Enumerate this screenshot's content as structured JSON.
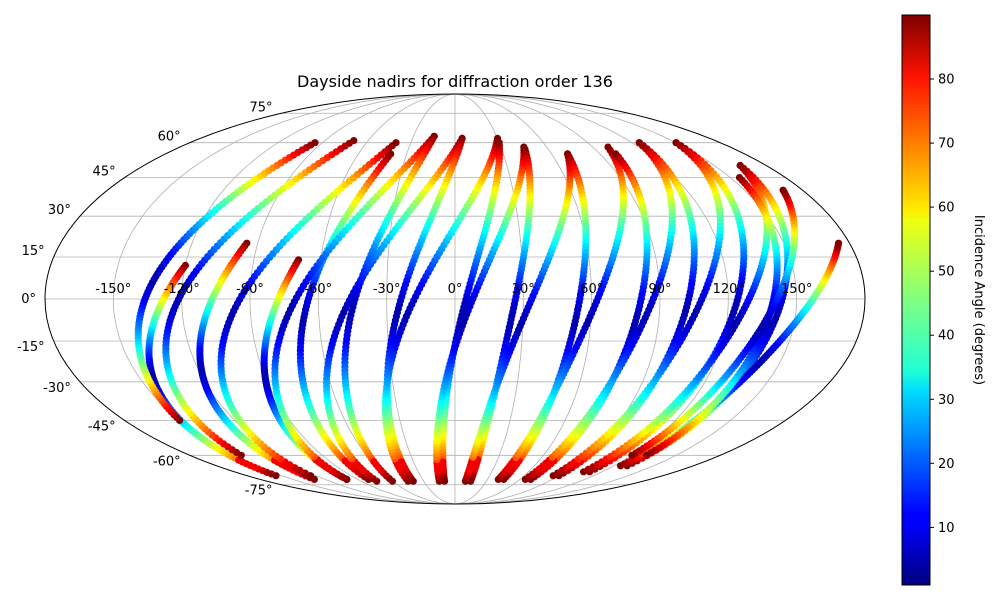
{
  "chart_data": {
    "type": "scatter",
    "projection": "mollweide",
    "title": "Dayside nadirs for diffraction order 136",
    "xlabel": "",
    "ylabel": "",
    "xlim": [
      -180,
      180
    ],
    "ylim": [
      -90,
      90
    ],
    "grid": true,
    "lon_tick_labels": [
      "-150°",
      "-120°",
      "-90°",
      "-60°",
      "-30°",
      "0°",
      "30°",
      "60°",
      "90°",
      "120°",
      "150°"
    ],
    "lon_tick_values": [
      -150,
      -120,
      -90,
      -60,
      -30,
      0,
      30,
      60,
      90,
      120,
      150
    ],
    "lat_tick_labels": [
      "-75°",
      "-60°",
      "-45°",
      "-30°",
      "-15°",
      "0°",
      "15°",
      "30°",
      "45°",
      "60°",
      "75°"
    ],
    "lat_tick_values": [
      -75,
      -60,
      -45,
      -30,
      -15,
      0,
      15,
      30,
      45,
      60,
      75
    ],
    "colorbar": {
      "label": "Incidence Angle (degrees)",
      "colormap": "jet",
      "range": [
        1,
        90
      ],
      "tick_labels": [
        "10",
        "20",
        "30",
        "40",
        "50",
        "60",
        "70",
        "80"
      ],
      "tick_values": [
        10,
        20,
        30,
        40,
        50,
        60,
        70,
        80
      ]
    },
    "tracks": [
      {
        "start_lon": -120,
        "end_lon": -155,
        "start_lat": 12,
        "end_lat": -70,
        "lat_min": -70,
        "lat_max": 12
      },
      {
        "start_lon": -150,
        "end_lon": -95,
        "start_lat": -45,
        "end_lat": 60,
        "lat_min": -45,
        "lat_max": 60
      },
      {
        "start_lon": -95,
        "end_lon": -130,
        "start_lat": 20,
        "end_lat": -72,
        "lat_min": -72,
        "lat_max": 20
      },
      {
        "start_lon": -145,
        "end_lon": -70,
        "start_lat": -60,
        "end_lat": 61,
        "lat_min": -60,
        "lat_max": 61
      },
      {
        "start_lon": -70,
        "end_lon": -100,
        "start_lat": 14,
        "end_lat": -72,
        "lat_min": -72,
        "lat_max": 14
      },
      {
        "start_lon": -125,
        "end_lon": -40,
        "start_lat": -70,
        "end_lat": 60,
        "lat_min": -70,
        "lat_max": 60
      },
      {
        "start_lon": -40,
        "end_lon": -80,
        "start_lat": 55,
        "end_lat": -72,
        "lat_min": -72,
        "lat_max": 55
      },
      {
        "start_lon": -100,
        "end_lon": -15,
        "start_lat": -72,
        "end_lat": 63,
        "lat_min": -72,
        "lat_max": 63
      },
      {
        "start_lon": -15,
        "end_lon": -60,
        "start_lat": 63,
        "end_lat": -73,
        "lat_min": -73,
        "lat_max": 63
      },
      {
        "start_lon": -75,
        "end_lon": 5,
        "start_lat": -73,
        "end_lat": 62,
        "lat_min": -73,
        "lat_max": 62
      },
      {
        "start_lon": 5,
        "end_lon": -40,
        "start_lat": 62,
        "end_lat": -73,
        "lat_min": -73,
        "lat_max": 62
      },
      {
        "start_lon": -45,
        "end_lon": 30,
        "start_lat": -73,
        "end_lat": 62,
        "lat_min": -73,
        "lat_max": 62
      },
      {
        "start_lon": 30,
        "end_lon": -10,
        "start_lat": 60,
        "end_lat": -73,
        "lat_min": -73,
        "lat_max": 60
      },
      {
        "start_lon": -15,
        "end_lon": 45,
        "start_lat": -73,
        "end_lat": 58,
        "lat_min": -73,
        "lat_max": 58
      },
      {
        "start_lon": 45,
        "end_lon": 15,
        "start_lat": 57,
        "end_lat": -73,
        "lat_min": -73,
        "lat_max": 57
      },
      {
        "start_lon": 10,
        "end_lon": 70,
        "start_lat": -73,
        "end_lat": 55,
        "lat_min": -73,
        "lat_max": 55
      },
      {
        "start_lon": 70,
        "end_lon": 45,
        "start_lat": 55,
        "end_lat": -72,
        "lat_min": -72,
        "lat_max": 55
      },
      {
        "start_lon": 40,
        "end_lon": 100,
        "start_lat": -72,
        "end_lat": 58,
        "lat_min": -72,
        "lat_max": 58
      },
      {
        "start_lon": 100,
        "end_lon": 70,
        "start_lat": 55,
        "end_lat": -72,
        "lat_min": -72,
        "lat_max": 55
      },
      {
        "start_lon": 65,
        "end_lon": 125,
        "start_lat": -72,
        "end_lat": 60,
        "lat_min": -72,
        "lat_max": 60
      },
      {
        "start_lon": 125,
        "end_lon": 90,
        "start_lat": 60,
        "end_lat": -70,
        "lat_min": -70,
        "lat_max": 60
      },
      {
        "start_lon": 85,
        "end_lon": 150,
        "start_lat": -70,
        "end_lat": 60,
        "lat_min": -70,
        "lat_max": 60
      },
      {
        "start_lon": 150,
        "end_lon": 110,
        "start_lat": 60,
        "end_lat": -68,
        "lat_min": -68,
        "lat_max": 60
      },
      {
        "start_lon": 105,
        "end_lon": 165,
        "start_lat": -68,
        "end_lat": 50,
        "lat_min": -68,
        "lat_max": 50
      },
      {
        "start_lon": 165,
        "end_lon": 130,
        "start_lat": 50,
        "end_lat": -65,
        "lat_min": -65,
        "lat_max": 50
      },
      {
        "start_lon": 125,
        "end_lon": 175,
        "start_lat": -65,
        "end_lat": 20,
        "lat_min": -65,
        "lat_max": 20
      },
      {
        "start_lon": 155,
        "end_lon": 130,
        "start_lat": 45,
        "end_lat": -60,
        "lat_min": -60,
        "lat_max": 45
      },
      {
        "start_lon": 120,
        "end_lon": 170,
        "start_lat": -60,
        "end_lat": 40,
        "lat_min": -60,
        "lat_max": 40
      }
    ]
  }
}
